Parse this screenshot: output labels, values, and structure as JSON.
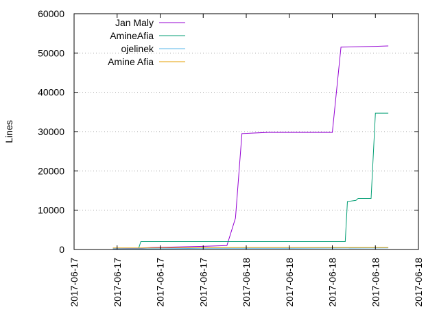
{
  "chart_data": {
    "type": "line",
    "ylabel": "Lines",
    "xlabel": "",
    "title": "",
    "ylim": [
      0,
      60000
    ],
    "yticks": [
      0,
      10000,
      20000,
      30000,
      40000,
      50000,
      60000
    ],
    "xlim": [
      0,
      8
    ],
    "xticks": [
      {
        "x": 0,
        "label": "2017-06-17"
      },
      {
        "x": 1,
        "label": "2017-06-17"
      },
      {
        "x": 2,
        "label": "2017-06-17"
      },
      {
        "x": 3,
        "label": "2017-06-17"
      },
      {
        "x": 4,
        "label": "2017-06-18"
      },
      {
        "x": 5,
        "label": "2017-06-18"
      },
      {
        "x": 6,
        "label": "2017-06-18"
      },
      {
        "x": 7,
        "label": "2017-06-18"
      },
      {
        "x": 8,
        "label": "2017-06-18"
      }
    ],
    "grid": "dotted, y only",
    "legend_position": "top-left",
    "series": [
      {
        "name": "Jan Maly",
        "color": "#9400d3",
        "points": [
          [
            0.9,
            200
          ],
          [
            1.5,
            300
          ],
          [
            1.8,
            500
          ],
          [
            3.0,
            800
          ],
          [
            3.55,
            1000
          ],
          [
            3.75,
            8000
          ],
          [
            3.9,
            29500
          ],
          [
            4.5,
            29800
          ],
          [
            6.0,
            29800
          ],
          [
            6.2,
            51500
          ],
          [
            7.0,
            51700
          ],
          [
            7.3,
            51800
          ]
        ]
      },
      {
        "name": "AmineAfia",
        "color": "#009e73",
        "points": [
          [
            1.5,
            300
          ],
          [
            1.55,
            2000
          ],
          [
            4.0,
            2000
          ],
          [
            6.3,
            2000
          ],
          [
            6.35,
            12200
          ],
          [
            6.55,
            12500
          ],
          [
            6.6,
            13000
          ],
          [
            6.9,
            13000
          ],
          [
            7.0,
            34700
          ],
          [
            7.3,
            34700
          ]
        ]
      },
      {
        "name": "ojelinek",
        "color": "#56b4e9",
        "points": [
          [
            0.9,
            200
          ],
          [
            2.0,
            200
          ],
          [
            3.0,
            300
          ],
          [
            5.0,
            300
          ],
          [
            7.3,
            400
          ]
        ]
      },
      {
        "name": "Amine Afia",
        "color": "#e69f00",
        "points": [
          [
            0.9,
            400
          ],
          [
            1.5,
            400
          ],
          [
            4.0,
            500
          ],
          [
            6.5,
            500
          ],
          [
            7.3,
            500
          ]
        ]
      }
    ]
  }
}
